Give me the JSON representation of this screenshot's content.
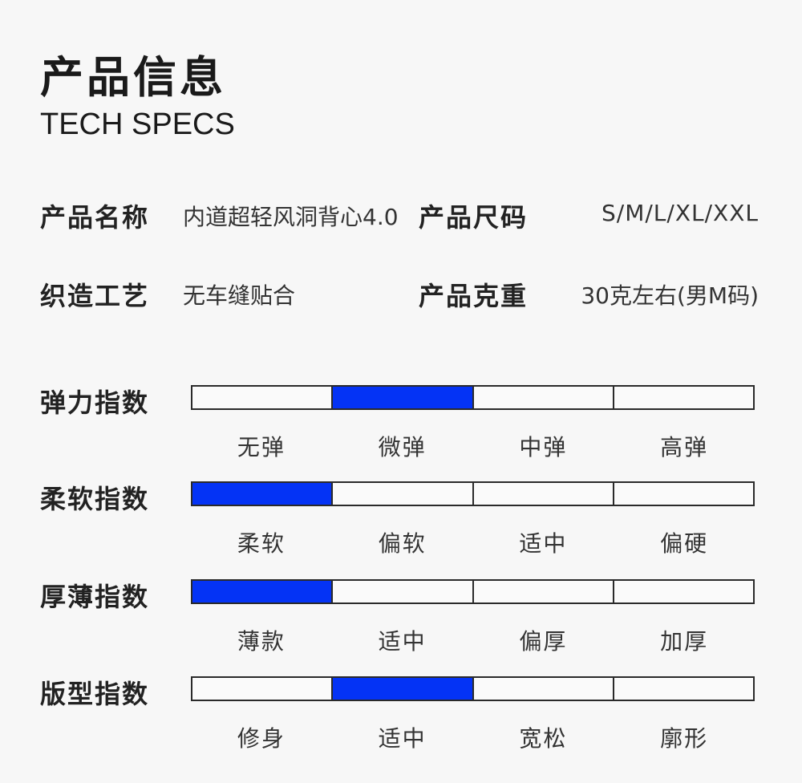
{
  "header": {
    "title": "产品信息",
    "subtitle": "TECH SPECS"
  },
  "specs": {
    "name_label": "产品名称",
    "name_value": "内道超轻风洞背心4.0",
    "size_label": "产品尺码",
    "size_value": "S/M/L/XL/XXL",
    "craft_label": "织造工艺",
    "craft_value": "无车缝贴合",
    "weight_label": "产品克重",
    "weight_value": "30克左右(男M码)"
  },
  "accent_color": "#0433f5",
  "indices": [
    {
      "label": "弹力指数",
      "options": [
        "无弹",
        "微弹",
        "中弹",
        "高弹"
      ],
      "selected": 1
    },
    {
      "label": "柔软指数",
      "options": [
        "柔软",
        "偏软",
        "适中",
        "偏硬"
      ],
      "selected": 0
    },
    {
      "label": "厚薄指数",
      "options": [
        "薄款",
        "适中",
        "偏厚",
        "加厚"
      ],
      "selected": 0
    },
    {
      "label": "版型指数",
      "options": [
        "修身",
        "适中",
        "宽松",
        "廓形"
      ],
      "selected": 1
    }
  ]
}
